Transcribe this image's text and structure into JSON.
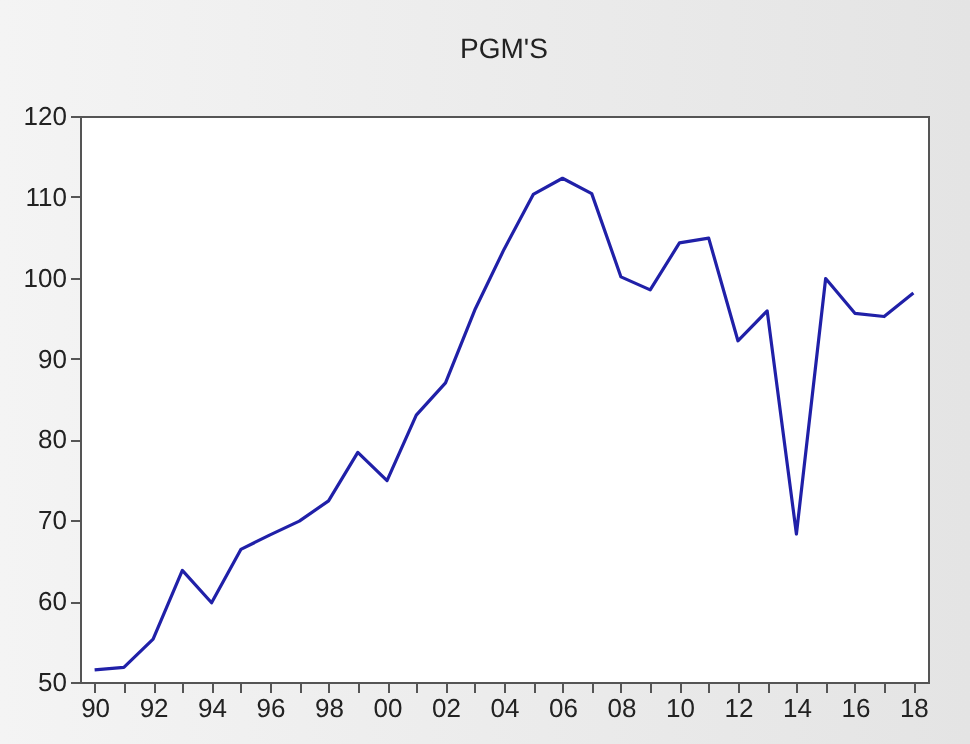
{
  "chart_data": {
    "type": "line",
    "title": "PGM'S",
    "categories": [
      "90",
      null,
      "92",
      null,
      "94",
      null,
      "96",
      null,
      "98",
      null,
      "00",
      null,
      "02",
      null,
      "04",
      null,
      "06",
      null,
      "08",
      null,
      "10",
      null,
      "12",
      null,
      "14",
      null,
      "16",
      null,
      "18"
    ],
    "series": [
      {
        "color": "#2020a8",
        "values": [
          51.5,
          51.8,
          55.3,
          63.8,
          59.8,
          66.4,
          68.2,
          69.9,
          72.4,
          78.4,
          74.9,
          83.0,
          87.0,
          96.0,
          103.5,
          110.3,
          112.3,
          110.4,
          100.1,
          98.5,
          104.3,
          104.9,
          92.2,
          95.9,
          68.3,
          99.9,
          95.6,
          95.2,
          98.1
        ]
      }
    ],
    "ylim": [
      50,
      120
    ],
    "yticks": [
      50,
      60,
      70,
      80,
      90,
      100,
      110,
      120
    ],
    "grid": false,
    "marker": "none",
    "line_style": "solid"
  }
}
